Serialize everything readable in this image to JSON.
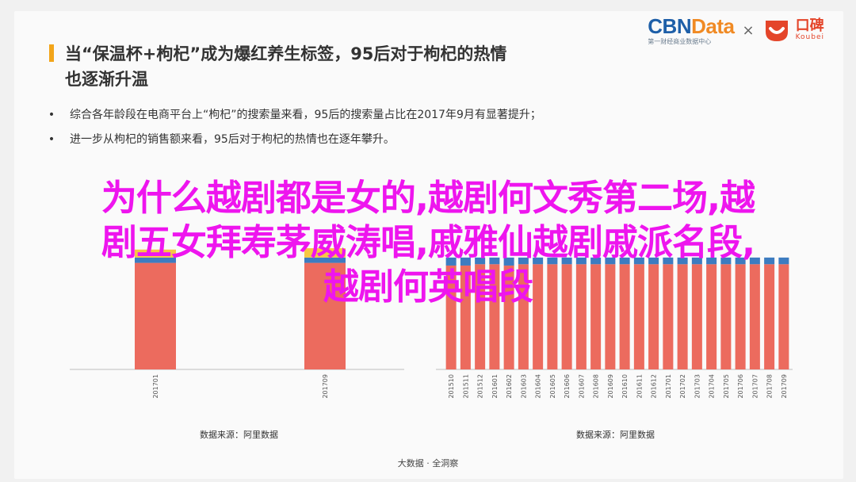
{
  "logos": {
    "cbn_part1": "CBN",
    "cbn_part2": "Data",
    "cbn_sub": "第一财经商业数据中心",
    "times": "×",
    "koubei_name": "口碑",
    "koubei_sub": "Koubei"
  },
  "title": {
    "line1": "当“保温杯+枸杞”成为爆红养生标签，95后对于枸杞的热情",
    "line2": "也逐渐升温"
  },
  "bullets": [
    {
      "dot": "•",
      "text": "综合各年龄段在电商平台上“枸杞”的搜索量来看，95后的搜索量占比在2017年9月有显著提升；"
    },
    {
      "dot": "•",
      "text": "进一步从枸杞的销售额来看，95后对于枸杞的热情也在逐年攀升。"
    }
  ],
  "colors": {
    "red": "#ec6b5e",
    "blue": "#3d7cc0",
    "yellow": "#f6c744",
    "overlay": "#ee15ee"
  },
  "chart_data": [
    {
      "type": "bar",
      "stacked": true,
      "categories": [
        "201701",
        "201709"
      ],
      "series": [
        {
          "values": [
            80,
            80
          ]
        },
        {
          "values": [
            4,
            4
          ]
        },
        {
          "values": [
            6,
            7
          ]
        }
      ],
      "source": "数据来源：阿里数据"
    },
    {
      "type": "bar",
      "stacked": true,
      "categories": [
        "201510",
        "201511",
        "201512",
        "201601",
        "201602",
        "201603",
        "201604",
        "201605",
        "201606",
        "201607",
        "201608",
        "201609",
        "201610",
        "201611",
        "201612",
        "201701",
        "201702",
        "201703",
        "201704",
        "201705",
        "201706",
        "201707",
        "201708",
        "201709"
      ],
      "series": [
        {
          "values": [
            78,
            78,
            79,
            79,
            78,
            79,
            79,
            79,
            79,
            79,
            79,
            79,
            79,
            79,
            79,
            79,
            79,
            79,
            79,
            79,
            79,
            79,
            79,
            79
          ]
        },
        {
          "values": [
            6,
            6,
            5,
            5,
            6,
            5,
            5,
            5,
            5,
            5,
            5,
            5,
            5,
            5,
            5,
            5,
            5,
            5,
            5,
            5,
            5,
            5,
            5,
            5
          ]
        }
      ],
      "source": "数据来源：阿里数据"
    }
  ],
  "footer": "大数据 · 全洞察",
  "overlay": {
    "line1": "为什么越剧都是女的,越剧何文秀第二场,越",
    "line2": "剧五女拜寿茅威涛唱,戚雅仙越剧戚派名段,",
    "line3": "越剧何英唱段"
  }
}
